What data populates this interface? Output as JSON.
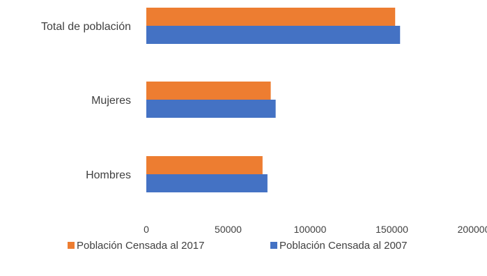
{
  "chart_data": {
    "type": "bar",
    "orientation": "horizontal",
    "categories": [
      "Total de población",
      "Mujeres",
      "Hombres"
    ],
    "series": [
      {
        "name": "Población Censada al 2017",
        "color": "#ED7D31",
        "values": [
          152000,
          76000,
          71000
        ]
      },
      {
        "name": "Población Censada al 2007",
        "color": "#4472C4",
        "values": [
          155000,
          79000,
          74000
        ]
      }
    ],
    "xlim": [
      0,
      200000
    ],
    "x_ticks": [
      "0",
      "50000",
      "100000",
      "150000",
      "200000"
    ],
    "legend_position": "bottom",
    "grid": false
  }
}
